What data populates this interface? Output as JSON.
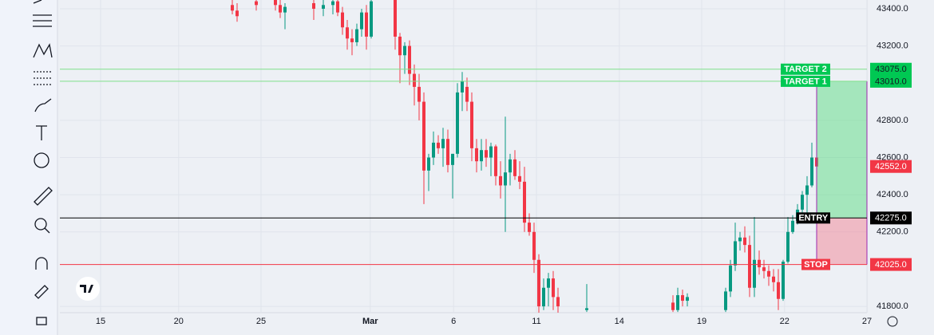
{
  "chart_data": {
    "type": "candlestick",
    "x": [
      36,
      37,
      41,
      45,
      46,
      47,
      53,
      55,
      57,
      58,
      59,
      60,
      61,
      62,
      63,
      64,
      65,
      70,
      71,
      72,
      73,
      74,
      75,
      76,
      77,
      78,
      79,
      80,
      81,
      82,
      83,
      84,
      85,
      86,
      87,
      88,
      89,
      90,
      91,
      92,
      93,
      94,
      95,
      96,
      97,
      98,
      99,
      100,
      101,
      102,
      103,
      104,
      110,
      128,
      129,
      130,
      131,
      139,
      140,
      141,
      142,
      143,
      144,
      145,
      146,
      147,
      148,
      149,
      150,
      151,
      152,
      153,
      154,
      155,
      156,
      157,
      158
    ],
    "open": [
      43420,
      43390,
      43440,
      43450,
      43420,
      43380,
      43430,
      43400,
      43420,
      43440,
      43380,
      43300,
      43240,
      43220,
      43290,
      43380,
      43250,
      43450,
      43250,
      43150,
      43200,
      43050,
      42980,
      42900,
      42530,
      42600,
      42680,
      42650,
      42700,
      42560,
      42620,
      42950,
      42980,
      42900,
      42650,
      42580,
      42640,
      42600,
      42660,
      42500,
      42450,
      42520,
      42590,
      42500,
      42470,
      42250,
      42200,
      42050,
      41800,
      41900,
      41950,
      41850,
      41780,
      41820,
      41780,
      41860,
      41830,
      41780,
      41880,
      42020,
      42150,
      42170,
      42130,
      41900,
      42050,
      42010,
      41990,
      41960,
      41930,
      41840,
      42040,
      42200,
      42260,
      42320,
      42400,
      42450,
      42600
    ],
    "high": [
      43460,
      43430,
      43460,
      43470,
      43450,
      43430,
      43460,
      43450,
      43460,
      43460,
      43410,
      43340,
      43290,
      43320,
      43400,
      43420,
      43460,
      43460,
      43270,
      43220,
      43230,
      43100,
      43050,
      42950,
      42620,
      42740,
      42720,
      42760,
      42750,
      42620,
      43000,
      43060,
      43030,
      42950,
      42700,
      42700,
      42700,
      42680,
      42670,
      42580,
      42820,
      42620,
      42640,
      42580,
      42550,
      42300,
      42250,
      42080,
      41950,
      41980,
      41990,
      41900,
      41920,
      41860,
      41900,
      41890,
      41870,
      41900,
      42050,
      42250,
      42200,
      42230,
      42180,
      42280,
      42100,
      42050,
      42020,
      42000,
      42000,
      42050,
      42280,
      42290,
      42350,
      42420,
      42500,
      42680,
      42620
    ],
    "low": [
      43370,
      43330,
      43390,
      43390,
      43350,
      43290,
      43340,
      43360,
      43370,
      43360,
      43260,
      43180,
      43150,
      43200,
      43250,
      43180,
      43240,
      43180,
      43000,
      43050,
      42990,
      42880,
      42800,
      42350,
      42420,
      42560,
      42620,
      42550,
      42520,
      42380,
      42600,
      42850,
      42850,
      42580,
      42520,
      42530,
      42550,
      42500,
      42450,
      42380,
      42200,
      42450,
      42480,
      42430,
      42200,
      42180,
      41980,
      41750,
      41780,
      41800,
      41780,
      41760,
      41770,
      41770,
      41770,
      41800,
      41800,
      41770,
      41850,
      41990,
      42100,
      42090,
      41850,
      41850,
      41970,
      41950,
      41910,
      41880,
      41780,
      41830,
      42030,
      42190,
      42240,
      42290,
      42280,
      42440,
      42540
    ],
    "close": [
      43390,
      43360,
      43420,
      43420,
      43380,
      43410,
      43400,
      43420,
      43440,
      43380,
      43300,
      43240,
      43220,
      43290,
      43380,
      43250,
      43440,
      43250,
      43150,
      43200,
      43050,
      42980,
      42900,
      42530,
      42600,
      42680,
      42650,
      42700,
      42560,
      42620,
      42950,
      43010,
      42900,
      42650,
      42580,
      42640,
      42600,
      42660,
      42500,
      42450,
      42520,
      42590,
      42500,
      42470,
      42250,
      42200,
      42050,
      41800,
      41900,
      41950,
      41850,
      41800,
      41790,
      41780,
      41860,
      41830,
      41850,
      41880,
      42020,
      42150,
      42170,
      42130,
      41900,
      42050,
      42010,
      41990,
      41960,
      41930,
      41840,
      42040,
      42200,
      42260,
      42320,
      42400,
      42450,
      42600,
      42552
    ],
    "up_color": "#089981",
    "down_color": "#f23645",
    "xlim": [
      0,
      168.5
    ],
    "xticks": [
      {
        "value": 8.5,
        "label": "15"
      },
      {
        "value": 24.8,
        "label": "20"
      },
      {
        "value": 42,
        "label": "25"
      },
      {
        "value": 64.8,
        "label": "Mar"
      },
      {
        "value": 82.2,
        "label": "6"
      },
      {
        "value": 99.5,
        "label": "11"
      },
      {
        "value": 116.8,
        "label": "14"
      },
      {
        "value": 134,
        "label": "19"
      },
      {
        "value": 151.3,
        "label": "22"
      },
      {
        "value": 168.5,
        "label": "27"
      }
    ],
    "ylim": [
      41766,
      43447
    ],
    "yticks": [
      {
        "value": 43400,
        "label": "43400.0"
      },
      {
        "value": 43200,
        "label": "43200.0"
      },
      {
        "value": 42800,
        "label": "42800.0"
      },
      {
        "value": 42600,
        "label": "42600.0"
      },
      {
        "value": 42400,
        "label": "42400.0"
      },
      {
        "value": 42200,
        "label": "42200.0"
      },
      {
        "value": 41800,
        "label": "41800.0"
      }
    ],
    "grid": true,
    "last_price": {
      "value": 42552,
      "label": "42552.0"
    },
    "levels": [
      {
        "name": "TARGET 2",
        "value": 43075,
        "label": "43075.0",
        "color": "#00c853"
      },
      {
        "name": "TARGET 1",
        "value": 43010,
        "label": "43010.0",
        "color": "#00c853"
      },
      {
        "name": "ENTRY",
        "value": 42275,
        "label": "42275.0",
        "color": "#000000"
      },
      {
        "name": "STOP",
        "value": 42025,
        "label": "42025.0",
        "color": "#f23645"
      }
    ]
  }
}
